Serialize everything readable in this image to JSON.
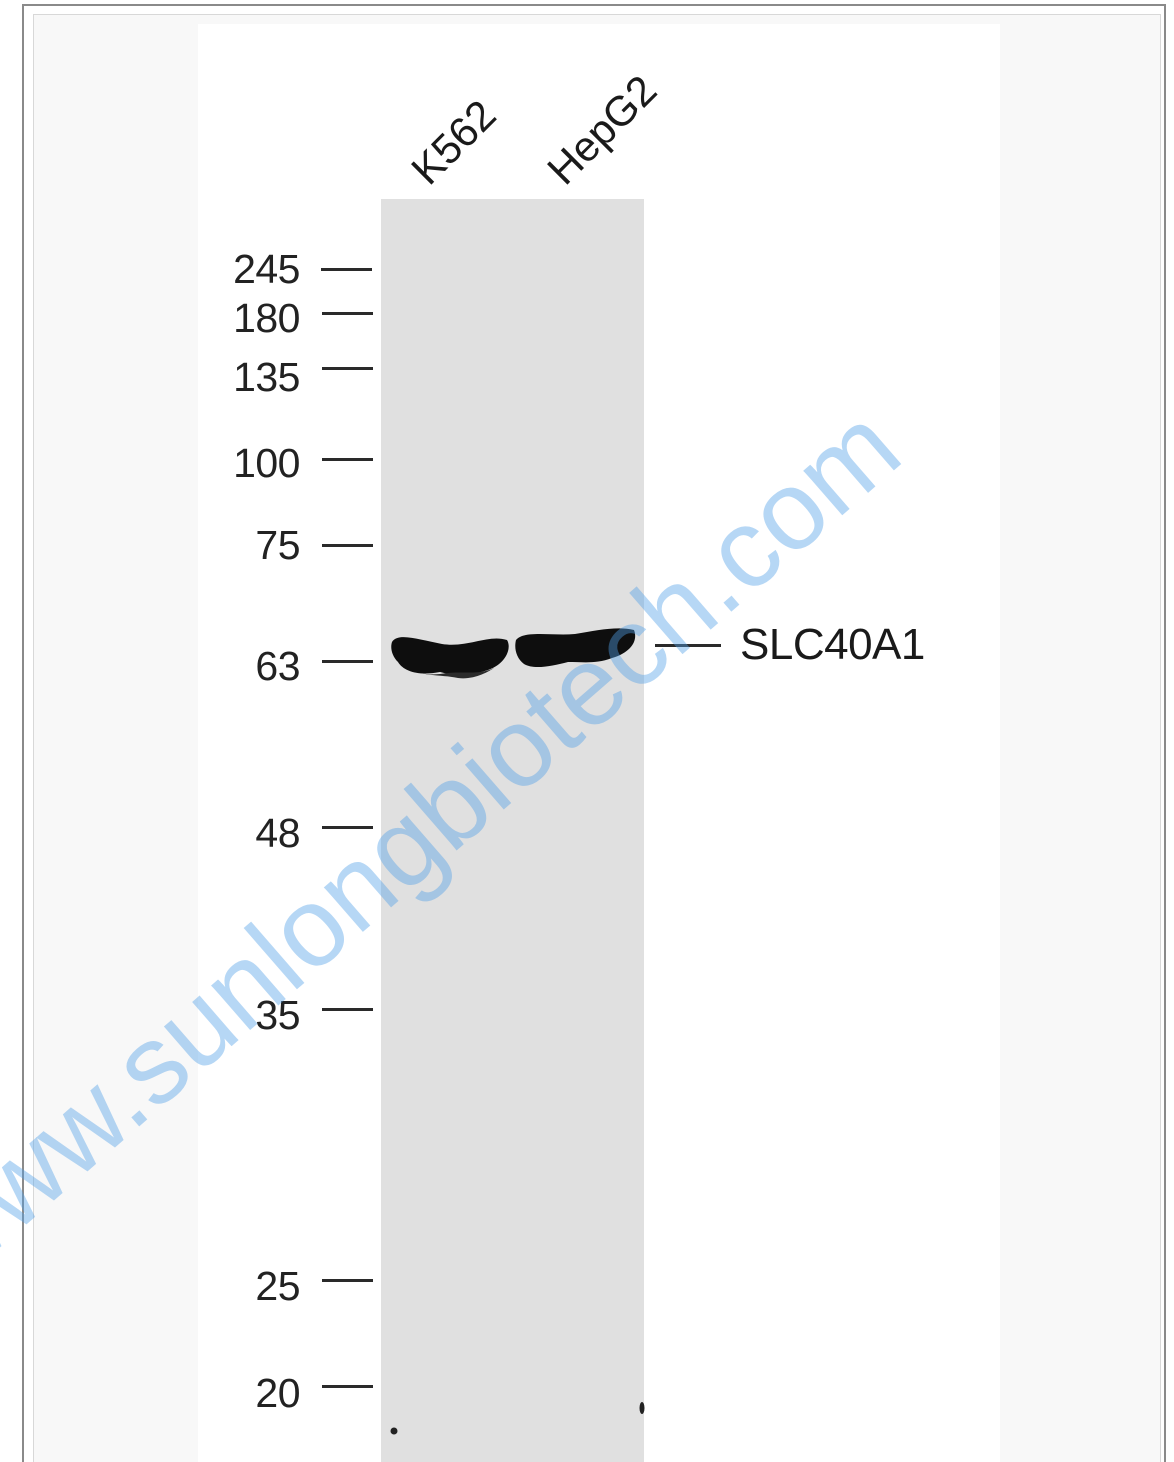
{
  "lanes": [
    "K562",
    "HepG2"
  ],
  "markers": [
    "245",
    "180",
    "135",
    "100",
    "75",
    "63",
    "48",
    "35",
    "25",
    "20"
  ],
  "band": {
    "label": "SLC40A1"
  },
  "watermark": "www.sunlongbiotech.com",
  "colors": {
    "membrane": "#e0e0e0",
    "band": "#0e0e0e",
    "watermark": "#50a0e6",
    "frame": "#8a8a8a",
    "panel": "#f8f8f8"
  }
}
